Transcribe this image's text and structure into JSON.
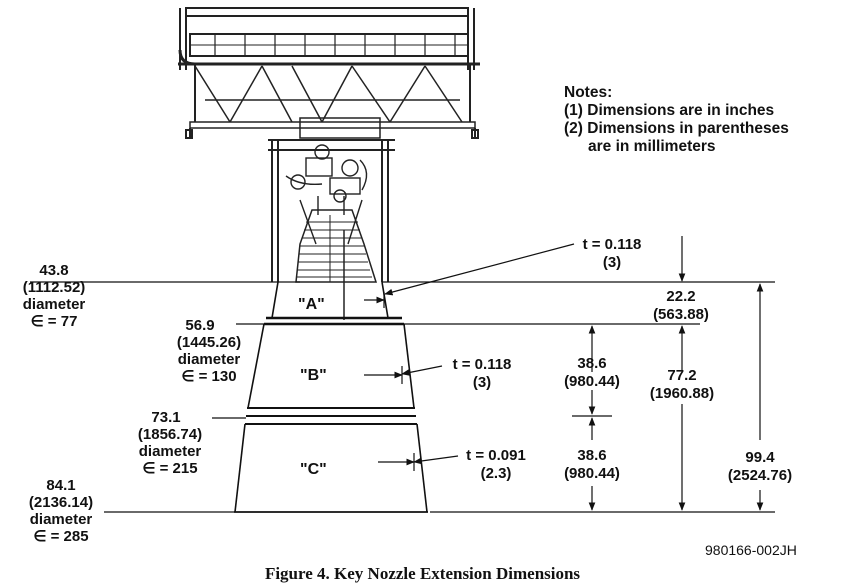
{
  "notes": {
    "heading": "Notes:",
    "items": [
      "(1) Dimensions are in inches",
      "(2) Dimensions in parentheses",
      "are in millimeters"
    ]
  },
  "stations": [
    {
      "id": "a",
      "value": "43.8",
      "mm": "(1112.52)",
      "word": "diameter",
      "eps": "∈ = 77"
    },
    {
      "id": "b",
      "value": "56.9",
      "mm": "(1445.26)",
      "word": "diameter",
      "eps": "∈ = 130"
    },
    {
      "id": "c",
      "value": "73.1",
      "mm": "(1856.74)",
      "word": "diameter",
      "eps": "∈ = 215"
    },
    {
      "id": "d",
      "value": "84.1",
      "mm": "(2136.14)",
      "word": "diameter",
      "eps": "∈ = 285"
    }
  ],
  "regions": [
    "\"A\"",
    "\"B\"",
    "\"C\""
  ],
  "thickness": [
    {
      "t": "t = 0.118",
      "mm": "(3)"
    },
    {
      "t": "t = 0.118",
      "mm": "(3)"
    },
    {
      "t": "t = 0.091",
      "mm": "(2.3)"
    }
  ],
  "lengths": {
    "a": {
      "in": "22.2",
      "mm": "(563.88)"
    },
    "b": {
      "in": "38.6",
      "mm": "(980.44)"
    },
    "c": {
      "in": "38.6",
      "mm": "(980.44)"
    },
    "bc": {
      "in": "77.2",
      "mm": "(1960.88)"
    },
    "total": {
      "in": "99.4",
      "mm": "(2524.76)"
    }
  },
  "figure_code": "980166-002JH",
  "caption": "Figure 4. Key Nozzle Extension Dimensions"
}
